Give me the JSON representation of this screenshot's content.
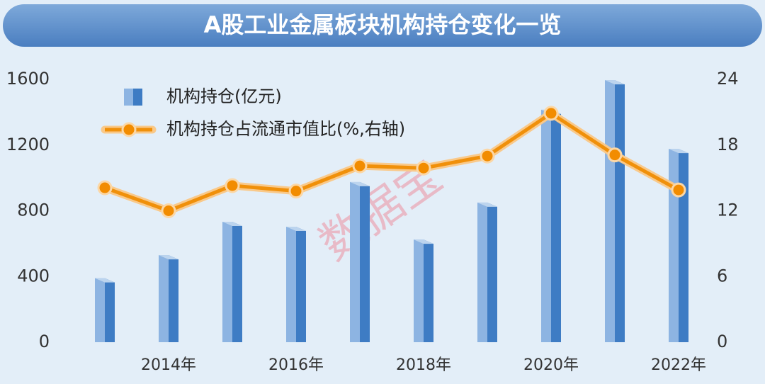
{
  "chart_data": {
    "type": "bar-line",
    "title": "A股工业金属板块机构持仓变化一览",
    "watermark": "数据宝",
    "categories": [
      null,
      "2014年",
      null,
      "2016年",
      null,
      "2018年",
      null,
      "2020年",
      null,
      "2022年"
    ],
    "series": [
      {
        "name": "机构持仓(亿元)",
        "type": "bar",
        "color": "#8db4e2",
        "values": [
          390,
          530,
          733,
          703,
          975,
          625,
          850,
          1415,
          1595,
          1177
        ]
      },
      {
        "name": "机构持仓占流通市值比(%,右轴)",
        "type": "line",
        "axis": "y2",
        "color": "#f0900a",
        "values": [
          14.1,
          12.0,
          14.3,
          13.8,
          16.1,
          15.9,
          17.0,
          20.9,
          17.1,
          13.9
        ]
      }
    ],
    "ylim": [
      0,
      1600
    ],
    "yticks": [
      0,
      400,
      800,
      1200,
      1600
    ],
    "y2lim": [
      0,
      24
    ],
    "y2ticks": [
      0,
      6,
      12,
      18,
      24
    ],
    "grid": false,
    "legend": "top-left"
  }
}
